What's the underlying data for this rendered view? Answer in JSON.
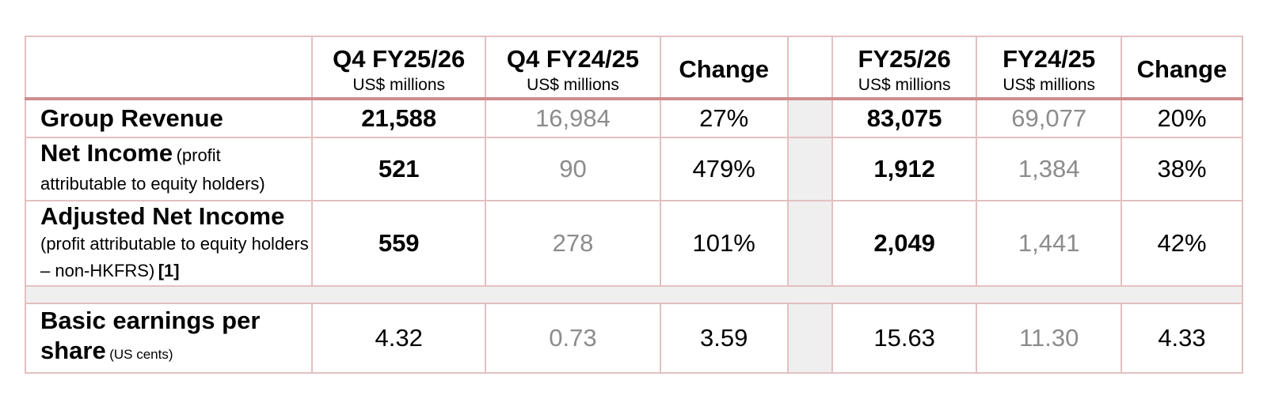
{
  "header": {
    "col1_title": "Q4 FY25/26",
    "col1_sub": "US$ millions",
    "col2_title": "Q4 FY24/25",
    "col2_sub": "US$ millions",
    "col3_title": "Change",
    "col4_title": "FY25/26",
    "col4_sub": "US$ millions",
    "col5_title": "FY24/25",
    "col5_sub": "US$ millions",
    "col6_title": "Change"
  },
  "rows": {
    "group_revenue": {
      "label": "Group Revenue",
      "values": [
        "21,588",
        "16,984",
        "27%",
        "83,075",
        "69,077",
        "20%"
      ]
    },
    "net_income": {
      "label": "Net Income",
      "note": "(profit attributable to equity holders)",
      "values": [
        "521",
        "90",
        "479%",
        "1,912",
        "1,384",
        "38%"
      ]
    },
    "adjusted_net_income": {
      "label": "Adjusted Net Income",
      "note": "(profit attributable to equity holders – non-HKFRS)",
      "ref": "[1]",
      "values": [
        "559",
        "278",
        "101%",
        "2,049",
        "1,441",
        "42%"
      ]
    },
    "basic_eps": {
      "label_line1": "Basic earnings per",
      "label_line2": "share",
      "note": "(US cents)",
      "values": [
        "4.32",
        "0.73",
        "3.59",
        "15.63",
        "11.30",
        "4.33"
      ]
    }
  }
}
